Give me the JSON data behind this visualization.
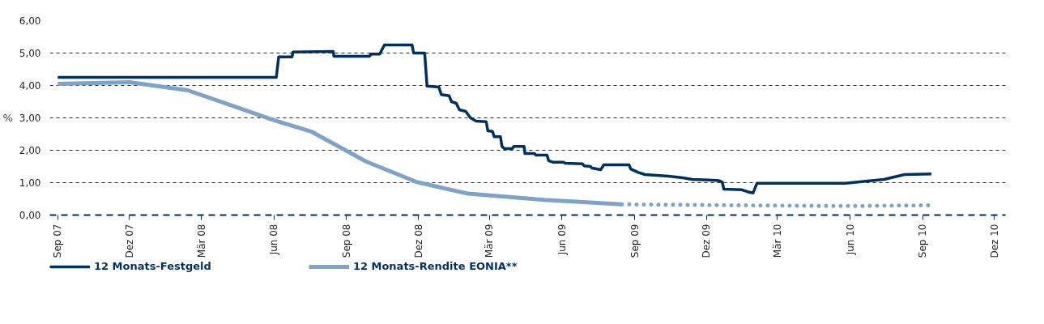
{
  "chart_data": {
    "type": "line",
    "ylabel": "%",
    "xlim": [
      "2007-08-22",
      "2010-12-15"
    ],
    "ylim": [
      0,
      6
    ],
    "xticks": [
      {
        "value": "2007-09-01",
        "label": "Sep 07"
      },
      {
        "value": "2007-12-01",
        "label": "Dez 07"
      },
      {
        "value": "2008-03-01",
        "label": "Mär 08"
      },
      {
        "value": "2008-06-01",
        "label": "Jun 08"
      },
      {
        "value": "2008-09-01",
        "label": "Sep 08"
      },
      {
        "value": "2008-12-01",
        "label": "Dez 08"
      },
      {
        "value": "2009-03-01",
        "label": "Mär 09"
      },
      {
        "value": "2009-06-01",
        "label": "Jun 09"
      },
      {
        "value": "2009-09-01",
        "label": "Sep 09"
      },
      {
        "value": "2009-12-01",
        "label": "Dez 09"
      },
      {
        "value": "2010-03-01",
        "label": "Mär 10"
      },
      {
        "value": "2010-06-01",
        "label": "Jun 10"
      },
      {
        "value": "2010-09-01",
        "label": "Sep 10"
      },
      {
        "value": "2010-12-01",
        "label": "Dez 10"
      }
    ],
    "yticks": [
      {
        "value": 0,
        "label": "0,00"
      },
      {
        "value": 1,
        "label": "1,00"
      },
      {
        "value": 2,
        "label": "2,00"
      },
      {
        "value": 3,
        "label": "3,00"
      },
      {
        "value": 4,
        "label": "4,00"
      },
      {
        "value": 5,
        "label": "5,00"
      },
      {
        "value": 6,
        "label": "6,00"
      }
    ],
    "grid": "y",
    "legend": "bottom",
    "series": [
      {
        "name": "12 Monats-Festgeld",
        "color": "#00305e",
        "line_style": "solid",
        "x": [
          "2007-09-01",
          "2008-06-04",
          "2008-06-07",
          "2008-06-24",
          "2008-06-25",
          "2008-08-15",
          "2008-08-16",
          "2008-09-30",
          "2008-10-02",
          "2008-10-13",
          "2008-10-19",
          "2008-11-23",
          "2008-11-25",
          "2008-12-09",
          "2008-12-12",
          "2008-12-27",
          "2008-12-30",
          "2009-01-09",
          "2009-01-12",
          "2009-01-18",
          "2009-01-22",
          "2009-01-30",
          "2009-02-05",
          "2009-02-12",
          "2009-02-25",
          "2009-02-27",
          "2009-03-05",
          "2009-03-07",
          "2009-03-15",
          "2009-03-17",
          "2009-03-20",
          "2009-03-30",
          "2009-04-01",
          "2009-04-14",
          "2009-04-15",
          "2009-04-27",
          "2009-04-29",
          "2009-05-13",
          "2009-05-15",
          "2009-05-21",
          "2009-06-03",
          "2009-06-05",
          "2009-06-27",
          "2009-06-29",
          "2009-07-07",
          "2009-07-09",
          "2009-07-20",
          "2009-07-24",
          "2009-08-25",
          "2009-08-27",
          "2009-09-05",
          "2009-09-14",
          "2009-10-14",
          "2009-11-01",
          "2009-11-13",
          "2009-12-04",
          "2009-12-17",
          "2009-12-21",
          "2009-12-23",
          "2010-01-15",
          "2010-01-22",
          "2010-01-29",
          "2010-02-03",
          "2010-05-26",
          "2010-07-14",
          "2010-08-09",
          "2010-09-12"
        ],
        "values": [
          4.25,
          4.25,
          4.88,
          4.88,
          5.03,
          5.05,
          4.9,
          4.9,
          4.97,
          4.97,
          5.25,
          5.25,
          5.0,
          5.0,
          3.98,
          3.95,
          3.72,
          3.68,
          3.5,
          3.45,
          3.25,
          3.2,
          3.0,
          2.9,
          2.88,
          2.6,
          2.58,
          2.42,
          2.42,
          2.12,
          2.05,
          2.05,
          2.12,
          2.12,
          1.9,
          1.9,
          1.85,
          1.85,
          1.68,
          1.63,
          1.63,
          1.6,
          1.58,
          1.52,
          1.5,
          1.45,
          1.4,
          1.55,
          1.55,
          1.42,
          1.32,
          1.25,
          1.2,
          1.15,
          1.1,
          1.08,
          1.06,
          1.02,
          0.8,
          0.78,
          0.72,
          0.68,
          0.98,
          0.98,
          1.1,
          1.25,
          1.27
        ]
      },
      {
        "name": "12 Monats-Rendite EONIA**",
        "color": "#7fa3c8",
        "line_style": "solid",
        "x": [
          "2007-09-01",
          "2007-12-01",
          "2008-02-13",
          "2008-06-01",
          "2008-07-18",
          "2008-09-26",
          "2008-11-29",
          "2009-02-02",
          "2009-05-09",
          "2009-08-16"
        ],
        "values": [
          4.05,
          4.1,
          3.85,
          2.93,
          2.58,
          1.65,
          1.02,
          0.66,
          0.47,
          0.33
        ]
      },
      {
        "color": "#7fa3c8",
        "line_style": "dotted",
        "x": [
          "2009-08-16",
          "2009-12-01",
          "2010-03-01",
          "2010-06-01",
          "2010-09-12"
        ],
        "values": [
          0.33,
          0.31,
          0.29,
          0.28,
          0.3
        ]
      }
    ]
  }
}
